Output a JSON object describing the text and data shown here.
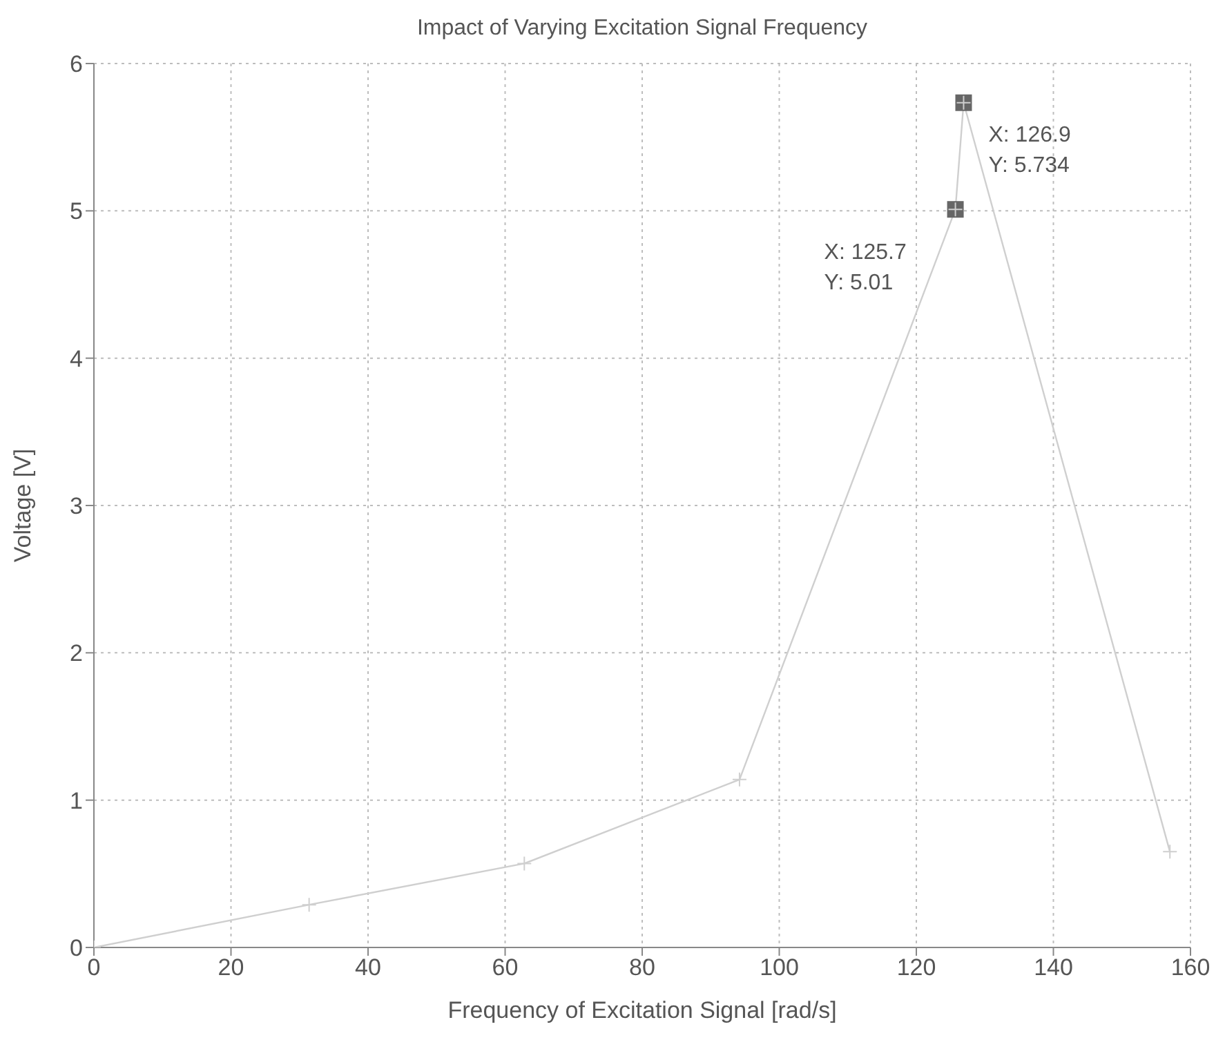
{
  "chart_data": {
    "type": "line",
    "title": "Impact of Varying Excitation Signal Frequency",
    "xlabel": "Frequency of Excitation Signal [rad/s]",
    "ylabel": "Voltage [V]",
    "x": [
      0,
      31.4,
      62.8,
      94.2,
      125.7,
      126.9,
      157
    ],
    "series": [
      {
        "color": "#cfcfcf",
        "values": [
          0,
          0.29,
          0.57,
          1.14,
          5.01,
          5.734,
          0.65
        ]
      }
    ],
    "xlim": [
      0,
      160
    ],
    "xticks": [
      0,
      20,
      40,
      60,
      80,
      100,
      120,
      140,
      160
    ],
    "ylim": [
      0,
      6
    ],
    "yticks": [
      0,
      1,
      2,
      3,
      4,
      5,
      6
    ],
    "grid": true,
    "marker": "cross",
    "line_style": "solid",
    "annotations": [
      {
        "text": "X: 126.9\nY: 5.734",
        "x": 126.9,
        "y": 5.734
      },
      {
        "text": "X: 125.7\nY: 5.01",
        "x": 125.7,
        "y": 5.01
      }
    ]
  }
}
